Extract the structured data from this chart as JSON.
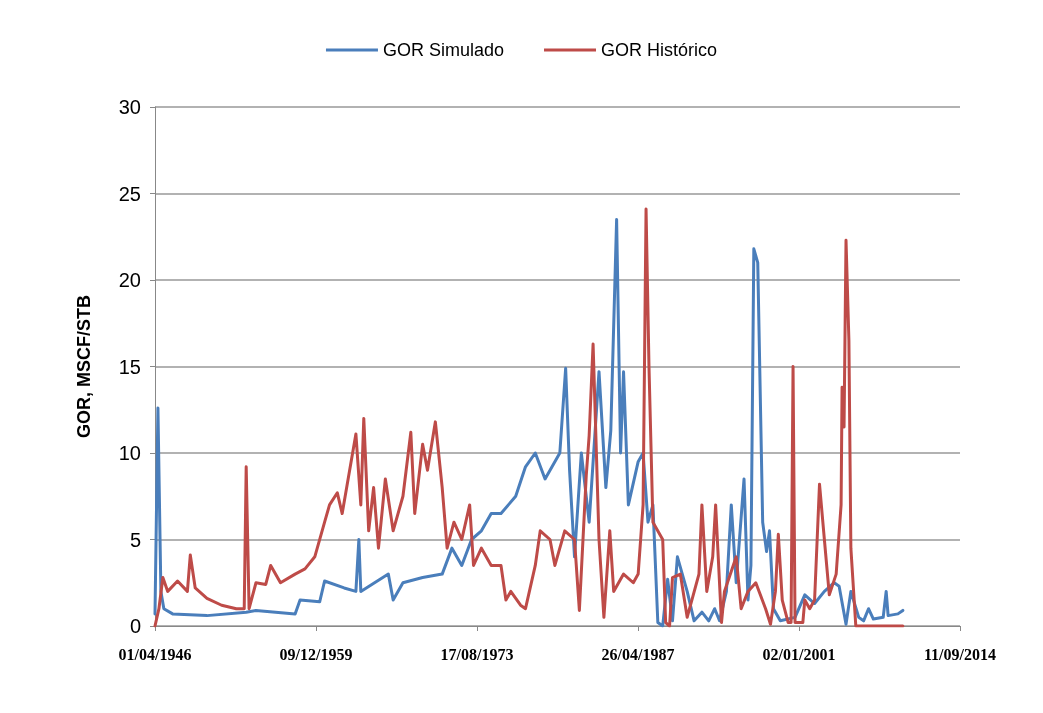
{
  "chart_data": {
    "type": "line",
    "ylabel": "GOR, MSCF/STB",
    "xlim": [
      "1946-04-01",
      "2014-09-11"
    ],
    "xticks": [
      {
        "value": "1946-04-01",
        "label": "01/04/1946"
      },
      {
        "value": "1959-12-09",
        "label": "09/12/1959"
      },
      {
        "value": "1973-08-17",
        "label": "17/08/1973"
      },
      {
        "value": "1987-04-26",
        "label": "26/04/1987"
      },
      {
        "value": "2001-01-02",
        "label": "02/01/2001"
      },
      {
        "value": "2014-09-11",
        "label": "11/09/2014"
      }
    ],
    "ylim": [
      0,
      30
    ],
    "yticks": [
      0,
      5,
      10,
      15,
      20,
      25,
      30
    ],
    "grid": "y",
    "legend": "top",
    "marker": "none",
    "line_style": "solid",
    "series": [
      {
        "name": "GOR Simulado",
        "color": "#4a7ebb",
        "x": [
          "1946-04",
          "1946-07",
          "1946-10",
          "1947-01",
          "1947-10",
          "1950-09",
          "1954-01",
          "1954-11",
          "1958-03",
          "1958-08",
          "1960-04",
          "1960-09",
          "1962-05",
          "1963-05",
          "1963-08",
          "1963-10",
          "1966-02",
          "1966-07",
          "1967-05",
          "1969-01",
          "1970-09",
          "1971-07",
          "1972-05",
          "1973-03",
          "1974-01",
          "1974-11",
          "1975-09",
          "1976-12",
          "1977-10",
          "1978-08",
          "1979-06",
          "1980-09",
          "1981-03",
          "1981-07",
          "1981-12",
          "1982-07",
          "1983-03",
          "1984-01",
          "1984-08",
          "1985-01",
          "1985-07",
          "1985-11",
          "1986-02",
          "1986-07",
          "1987-05",
          "1987-10",
          "1988-03",
          "1988-08",
          "1989-01",
          "1989-06",
          "1989-11",
          "1990-04",
          "1990-09",
          "1991-07",
          "1992-02",
          "1992-10",
          "1993-05",
          "1993-11",
          "1994-04",
          "1994-11",
          "1995-04",
          "1995-09",
          "1996-05",
          "1996-09",
          "1996-12",
          "1997-03",
          "1997-07",
          "1997-12",
          "1998-04",
          "1998-07",
          "1998-11",
          "1999-06",
          "2000-09",
          "2001-07",
          "2002-05",
          "2003-03",
          "2004-01",
          "2004-06",
          "2005-01",
          "2005-06",
          "2006-02",
          "2006-07",
          "2006-12",
          "2007-05",
          "2008-03",
          "2008-06",
          "2008-08",
          "2009-06",
          "2009-11"
        ],
        "values": [
          0.7,
          12.6,
          2,
          1.0,
          0.7,
          0.6,
          0.8,
          0.9,
          0.7,
          1.5,
          1.4,
          2.6,
          2.2,
          2.0,
          5.0,
          2.0,
          3.0,
          1.5,
          2.5,
          2.8,
          3.0,
          4.5,
          3.5,
          5.0,
          5.5,
          6.5,
          6.5,
          7.5,
          9.2,
          10.0,
          8.5,
          10.0,
          14.9,
          9.0,
          4.0,
          10.0,
          6.0,
          14.7,
          8.0,
          11.3,
          23.5,
          10.0,
          14.7,
          7.0,
          9.5,
          10.0,
          6.0,
          7.0,
          0.2,
          0,
          2.7,
          0.3,
          4.0,
          2.0,
          0.3,
          0.8,
          0.3,
          1.0,
          0.3,
          2.0,
          7.0,
          2.5,
          8.5,
          1.5,
          3.5,
          21.8,
          21.0,
          6.0,
          4.3,
          5.5,
          1.0,
          0.3,
          0.5,
          1.8,
          1.3,
          2.0,
          2.5,
          2.3,
          0.1,
          2.0,
          0.5,
          0.3,
          1.0,
          0.4,
          0.5,
          2.0,
          0.6,
          0.7,
          0.9
        ]
      },
      {
        "name": "GOR Histórico",
        "color": "#be4b48",
        "x": [
          "1946-04",
          "1946-08",
          "1946-12",
          "1947-05",
          "1948-03",
          "1949-01",
          "1949-04",
          "1949-09",
          "1950-09",
          "1951-12",
          "1953-03",
          "1953-11",
          "1954-01",
          "1954-04",
          "1954-11",
          "1955-09",
          "1956-02",
          "1956-12",
          "1958-03",
          "1959-01",
          "1959-11",
          "1960-09",
          "1961-02",
          "1961-10",
          "1962-03",
          "1963-05",
          "1963-10",
          "1964-01",
          "1964-06",
          "1964-11",
          "1965-04",
          "1965-11",
          "1966-07",
          "1967-05",
          "1968-01",
          "1968-05",
          "1969-01",
          "1969-06",
          "1970-02",
          "1970-09",
          "1971-02",
          "1971-09",
          "1972-05",
          "1973-01",
          "1973-05",
          "1974-01",
          "1974-11",
          "1975-09",
          "1976-02",
          "1976-07",
          "1977-05",
          "1977-10",
          "1978-08",
          "1979-01",
          "1979-11",
          "1980-04",
          "1981-02",
          "1981-12",
          "1982-05",
          "1982-12",
          "1983-03",
          "1983-07",
          "1984-01",
          "1984-06",
          "1984-12",
          "1985-04",
          "1986-02",
          "1986-12",
          "1987-05",
          "1987-10",
          "1988-01",
          "1988-04",
          "1988-08",
          "1989-06",
          "1989-09",
          "1990-01",
          "1990-04",
          "1990-12",
          "1991-07",
          "1992-07",
          "1992-10",
          "1993-03",
          "1993-09",
          "1993-12",
          "1994-06",
          "1994-09",
          "1995-09",
          "1996-02",
          "1996-09",
          "1997-05",
          "1998-03",
          "1998-08",
          "1999-01",
          "1999-04",
          "1999-08",
          "2000-02",
          "2000-05",
          "2000-07",
          "2000-09",
          "2001-05",
          "2001-07",
          "2001-12",
          "2002-05",
          "2002-10",
          "2003-03",
          "2003-08",
          "2004-03",
          "2004-08",
          "2004-09",
          "2004-11",
          "2005-01",
          "2005-04",
          "2005-06",
          "2005-11",
          "2009-11"
        ],
        "values": [
          0,
          1.0,
          2.8,
          2.0,
          2.6,
          2.0,
          4.1,
          2.2,
          1.6,
          1.2,
          1.0,
          1.0,
          9.2,
          1.0,
          2.5,
          2.4,
          3.5,
          2.5,
          3.0,
          3.3,
          4.0,
          6.0,
          7.0,
          7.7,
          6.5,
          11.1,
          7.0,
          12.0,
          5.5,
          8.0,
          4.5,
          8.5,
          5.5,
          7.5,
          11.2,
          6.5,
          10.5,
          9.0,
          11.8,
          8.0,
          4.5,
          6.0,
          5.0,
          7.0,
          3.5,
          4.5,
          3.5,
          3.5,
          1.5,
          2.0,
          1.2,
          1.0,
          3.5,
          5.5,
          5.0,
          3.5,
          5.5,
          5.0,
          0.9,
          8.7,
          11.0,
          16.3,
          5.0,
          0.5,
          5.5,
          2.0,
          3.0,
          2.5,
          3.0,
          7.0,
          24.1,
          15.0,
          6.0,
          5.0,
          0.2,
          0,
          2.8,
          3.0,
          0.5,
          3.0,
          7.0,
          2.0,
          4.0,
          7.0,
          0.2,
          2.0,
          4.0,
          1.0,
          2.0,
          2.5,
          1.0,
          0.1,
          2.0,
          5.3,
          1.5,
          0.2,
          0.2,
          15.0,
          0.2,
          0.2,
          1.5,
          1.0,
          1.5,
          8.2,
          5.0,
          1.8,
          3.0,
          7.0,
          13.8,
          11.5,
          22.3,
          16.5,
          4.5,
          0,
          0
        ]
      }
    ]
  }
}
